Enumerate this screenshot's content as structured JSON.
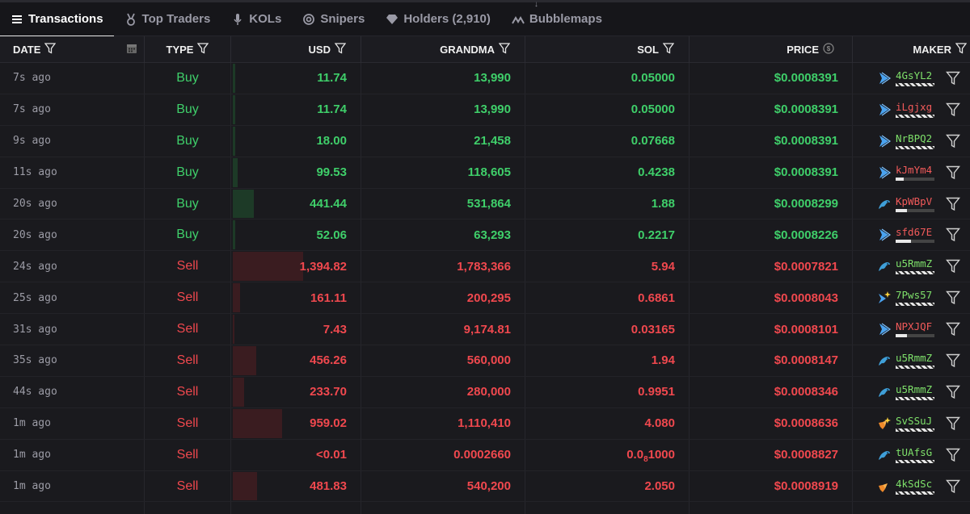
{
  "tabs": [
    {
      "label": "Transactions",
      "icon": "list-icon"
    },
    {
      "label": "Top Traders",
      "icon": "medal-icon"
    },
    {
      "label": "KOLs",
      "icon": "microphone-icon"
    },
    {
      "label": "Snipers",
      "icon": "target-icon"
    },
    {
      "label": "Holders (2,910)",
      "icon": "diamond-icon"
    },
    {
      "label": "Bubblemaps",
      "icon": "bubblemaps-icon"
    }
  ],
  "columns": {
    "date": "DATE",
    "type": "TYPE",
    "usd": "USD",
    "grandma": "GRANDMA",
    "sol": "SOL",
    "price": "PRICE",
    "maker": "MAKER"
  },
  "colors": {
    "buy": "#3fcf6a",
    "sell": "#f0484e",
    "maker_green": "#7ee06a",
    "maker_red": "#f25a5a"
  },
  "rows": [
    {
      "date": "7s ago",
      "type": "Buy",
      "usd": "11.74",
      "grandma": "13,990",
      "sol": "0.05000",
      "price": "$0.0008391",
      "maker": "4GsYL2",
      "maker_color": "g",
      "maker_icon": "play-icon",
      "bar_kind": "stripe",
      "usd_fill": 0.02
    },
    {
      "date": "7s ago",
      "type": "Buy",
      "usd": "11.74",
      "grandma": "13,990",
      "sol": "0.05000",
      "price": "$0.0008391",
      "maker": "iLgjxg",
      "maker_color": "rd",
      "maker_icon": "play-icon",
      "bar_kind": "stripe",
      "usd_fill": 0.02
    },
    {
      "date": "9s ago",
      "type": "Buy",
      "usd": "18.00",
      "grandma": "21,458",
      "sol": "0.07668",
      "price": "$0.0008391",
      "maker": "NrBPQ2",
      "maker_color": "g",
      "maker_icon": "play-icon",
      "bar_kind": "stripe",
      "usd_fill": 0.02
    },
    {
      "date": "11s ago",
      "type": "Buy",
      "usd": "99.53",
      "grandma": "118,605",
      "sol": "0.4238",
      "price": "$0.0008391",
      "maker": "kJmYm4",
      "maker_color": "rd",
      "maker_icon": "play-icon",
      "bar_kind": "part",
      "bar_fill": 0.2,
      "usd_fill": 0.04
    },
    {
      "date": "20s ago",
      "type": "Buy",
      "usd": "441.44",
      "grandma": "531,864",
      "sol": "1.88",
      "price": "$0.0008299",
      "maker": "KpWBpV",
      "maker_color": "rd",
      "maker_icon": "dolphin-icon",
      "bar_kind": "part",
      "bar_fill": 0.3,
      "usd_fill": 0.17
    },
    {
      "date": "20s ago",
      "type": "Buy",
      "usd": "52.06",
      "grandma": "63,293",
      "sol": "0.2217",
      "price": "$0.0008226",
      "maker": "sfd67E",
      "maker_color": "rd",
      "maker_icon": "play-icon",
      "bar_kind": "part",
      "bar_fill": 0.4,
      "usd_fill": 0.02
    },
    {
      "date": "24s ago",
      "type": "Sell",
      "usd": "1,394.82",
      "grandma": "1,783,366",
      "sol": "5.94",
      "price": "$0.0007821",
      "maker": "u5RmmZ",
      "maker_color": "g",
      "maker_icon": "dolphin-icon",
      "bar_kind": "stripe",
      "usd_fill": 0.58
    },
    {
      "date": "25s ago",
      "type": "Sell",
      "usd": "161.11",
      "grandma": "200,295",
      "sol": "0.6861",
      "price": "$0.0008043",
      "maker": "7Pws57",
      "maker_color": "g",
      "maker_icon": "sparkle-icon",
      "bar_kind": "stripe",
      "usd_fill": 0.06
    },
    {
      "date": "31s ago",
      "type": "Sell",
      "usd": "7.43",
      "grandma": "9,174.81",
      "sol": "0.03165",
      "price": "$0.0008101",
      "maker": "NPXJQF",
      "maker_color": "rd",
      "maker_icon": "play-icon",
      "bar_kind": "part",
      "bar_fill": 0.3,
      "usd_fill": 0.01
    },
    {
      "date": "35s ago",
      "type": "Sell",
      "usd": "456.26",
      "grandma": "560,000",
      "sol": "1.94",
      "price": "$0.0008147",
      "maker": "u5RmmZ",
      "maker_color": "g",
      "maker_icon": "dolphin-icon",
      "bar_kind": "stripe",
      "usd_fill": 0.19
    },
    {
      "date": "44s ago",
      "type": "Sell",
      "usd": "233.70",
      "grandma": "280,000",
      "sol": "0.9951",
      "price": "$0.0008346",
      "maker": "u5RmmZ",
      "maker_color": "g",
      "maker_icon": "dolphin-icon",
      "bar_kind": "stripe",
      "usd_fill": 0.09
    },
    {
      "date": "1m ago",
      "type": "Sell",
      "usd": "959.02",
      "grandma": "1,110,410",
      "sol": "4.080",
      "price": "$0.0008636",
      "maker": "SvSSuJ",
      "maker_color": "g",
      "maker_icon": "fox-sparkle-icon",
      "bar_kind": "stripe",
      "usd_fill": 0.41
    },
    {
      "date": "1m ago",
      "type": "Sell",
      "usd": "<0.01",
      "grandma": "0.0002660",
      "sol_main": "0.0",
      "sol_sub": "8",
      "sol_tail": "1000",
      "price": "$0.0008827",
      "maker": "tUAfsG",
      "maker_color": "g",
      "maker_icon": "dolphin-icon",
      "bar_kind": "stripe",
      "usd_fill": 0
    },
    {
      "date": "1m ago",
      "type": "Sell",
      "usd": "481.83",
      "grandma": "540,200",
      "sol": "2.050",
      "price": "$0.0008919",
      "maker": "4kSdSc",
      "maker_color": "g",
      "maker_icon": "fox-icon",
      "bar_kind": "stripe",
      "usd_fill": 0.2
    }
  ]
}
